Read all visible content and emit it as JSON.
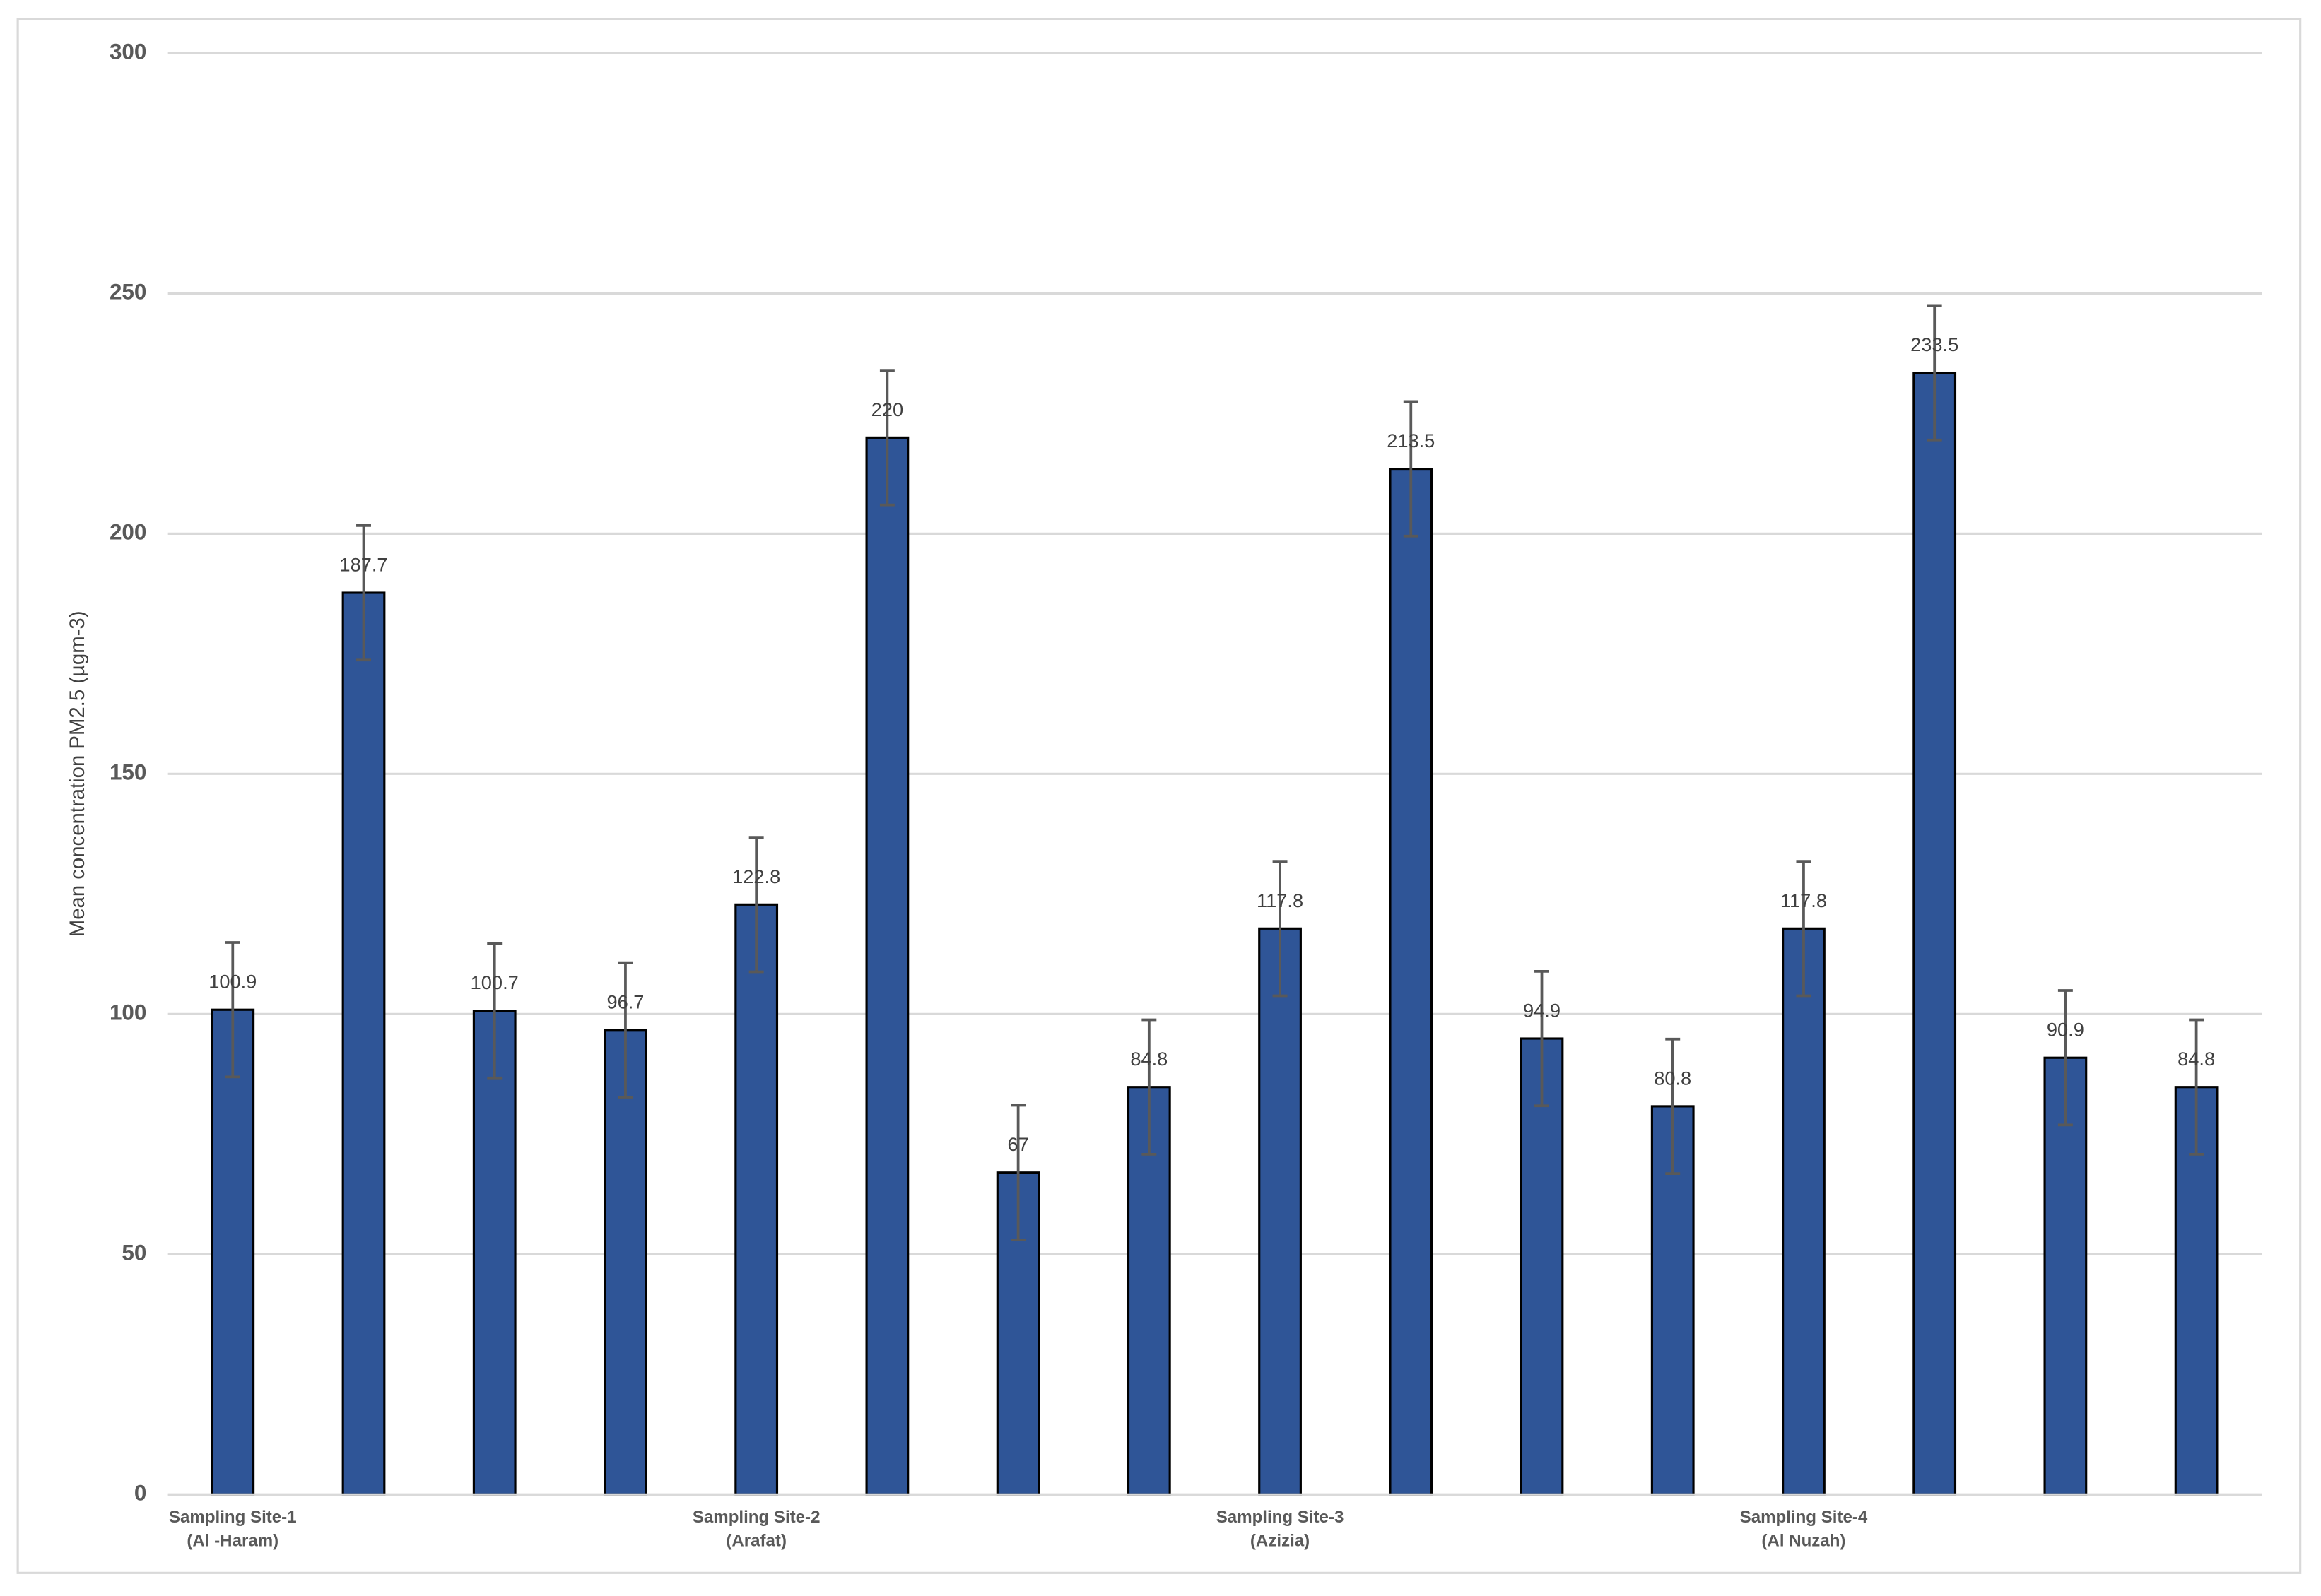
{
  "chart_data": {
    "type": "bar",
    "y_label": "Mean concentration PM2.5 (µgm-3)",
    "categories": [
      "Sampling Site-1\n(Al -Haram)",
      null,
      null,
      null,
      "Sampling Site-2\n(Arafat)",
      null,
      null,
      null,
      "Sampling Site-3\n(Azizia)",
      null,
      null,
      null,
      "Sampling Site-4\n(Al Nuzah)",
      null,
      null,
      null
    ],
    "values": [
      100.9,
      187.7,
      100.7,
      96.7,
      122.8,
      220,
      67,
      84.8,
      117.8,
      213.5,
      94.9,
      80.8,
      117.8,
      233.5,
      90.9,
      84.8
    ],
    "errors": [
      14,
      14,
      14,
      14,
      14,
      14,
      14,
      14,
      14,
      14,
      14,
      14,
      14,
      14,
      14,
      14
    ],
    "color": "#2f5597",
    "error_color": "#595959",
    "ylim": [
      0,
      300
    ],
    "yticks": [
      0,
      50,
      100,
      150,
      200,
      250,
      300
    ],
    "grid": true
  }
}
